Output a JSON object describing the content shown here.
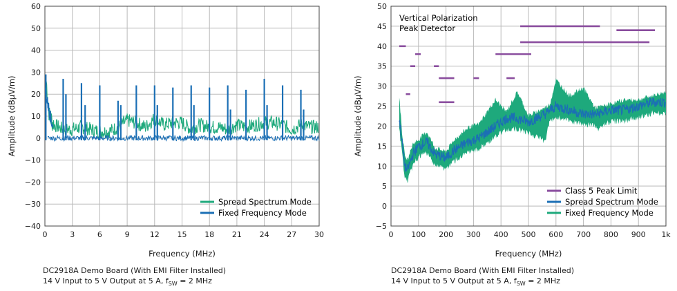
{
  "colors": {
    "spread_left": "#1ea97c",
    "fixed_left": "#1b6fb5",
    "spread_right": "#1b6fb5",
    "fixed_right": "#1ea97c",
    "limit": "#8a4d9e",
    "grid": "#b9b9b9"
  },
  "chart_data": [
    {
      "type": "line",
      "xlabel": "Frequency (MHz)",
      "ylabel": "Amplitude (dBµV/m)",
      "xlim": [
        0,
        30
      ],
      "ylim": [
        -40,
        60
      ],
      "grid": true,
      "legend_position": "bottom-right",
      "x_ticks": [
        "0",
        "3",
        "6",
        "9",
        "12",
        "15",
        "18",
        "21",
        "24",
        "27",
        "30"
      ],
      "y_ticks": [
        "60",
        "50",
        "40",
        "30",
        "20",
        "10",
        "0",
        "−10",
        "−20",
        "−30",
        "−40"
      ],
      "legend": [
        "Spread Spectrum Mode",
        "Fixed Frequency Mode"
      ],
      "series": [
        {
          "name": "Spread Spectrum Mode",
          "x": [
            0.15,
            0.5,
            1,
            2,
            3,
            4,
            5,
            6,
            7,
            8,
            9,
            10,
            11,
            12,
            13,
            14,
            15,
            16,
            17,
            18,
            19,
            20,
            21,
            22,
            23,
            24,
            25,
            26,
            27,
            28,
            29,
            30
          ],
          "values": [
            26,
            10,
            6,
            4,
            4,
            5,
            4,
            3,
            3,
            5,
            8,
            7,
            5,
            9,
            6,
            7,
            7,
            4,
            6,
            5,
            5,
            4,
            6,
            5,
            6,
            7,
            7,
            6,
            4,
            6,
            5,
            5
          ]
        },
        {
          "name": "Fixed Frequency Mode",
          "peaks_x": [
            0.1,
            2,
            2.3,
            4,
            4.4,
            6,
            8,
            8.3,
            10,
            12,
            12.3,
            14,
            16,
            16.3,
            18,
            20,
            20.3,
            22,
            24,
            24.3,
            26,
            28,
            28.3
          ],
          "peaks_y": [
            29,
            27,
            20,
            25,
            15,
            24,
            17,
            15,
            24,
            24,
            15,
            23,
            24,
            15,
            23,
            24,
            13,
            22,
            27,
            15,
            24,
            22,
            13
          ],
          "baseline": 0
        }
      ],
      "caption": [
        "DC2918A Demo Board (With EMI Filter Installed)",
        "14 V Input to 5 V Output at 5 A, f",
        "SW",
        " = 2 MHz"
      ]
    },
    {
      "type": "line",
      "xlabel": "Frequency (MHz)",
      "ylabel": "Amplitude (dBµV/m)",
      "xlim": [
        0,
        1000
      ],
      "ylim": [
        -5,
        50
      ],
      "grid": true,
      "legend_position": "bottom-right",
      "annotation": [
        "Vertical Polarization",
        "Peak Detector"
      ],
      "x_ticks": [
        "0",
        "100",
        "200",
        "300",
        "400",
        "500",
        "600",
        "700",
        "800",
        "900",
        "1k"
      ],
      "y_ticks": [
        "50",
        "45",
        "40",
        "35",
        "30",
        "25",
        "20",
        "15",
        "10",
        "5",
        "0",
        "−5"
      ],
      "legend": [
        "Class 5 Peak Limit",
        "Spread Spectrum Mode",
        "Fixed Frequency Mode"
      ],
      "limit_segments": [
        [
          30,
          54,
          40
        ],
        [
          54,
          70,
          28
        ],
        [
          70,
          88,
          35
        ],
        [
          88,
          108,
          38
        ],
        [
          156,
          174,
          35
        ],
        [
          174,
          230,
          26
        ],
        [
          174,
          230,
          32
        ],
        [
          300,
          320,
          32
        ],
        [
          380,
          510,
          38
        ],
        [
          420,
          450,
          32
        ],
        [
          470,
          760,
          45
        ],
        [
          470,
          940,
          41
        ],
        [
          820,
          960,
          44
        ]
      ],
      "series": [
        {
          "name": "Spread Spectrum Mode",
          "x": [
            30,
            40,
            50,
            60,
            70,
            80,
            100,
            130,
            160,
            200,
            230,
            280,
            320,
            380,
            420,
            460,
            500,
            560,
            600,
            650,
            700,
            750,
            800,
            850,
            900,
            950,
            1000
          ],
          "values": [
            22,
            16,
            10,
            9,
            11,
            13,
            15,
            16,
            13,
            12,
            14,
            16,
            17,
            20,
            22,
            22,
            21,
            23,
            25,
            24,
            23,
            23,
            24,
            24,
            25,
            26,
            26
          ]
        },
        {
          "name": "Fixed Frequency Mode",
          "x": [
            30,
            40,
            50,
            60,
            70,
            80,
            100,
            130,
            160,
            200,
            230,
            280,
            320,
            380,
            420,
            460,
            500,
            560,
            600,
            650,
            700,
            750,
            800,
            850,
            900,
            950,
            1000
          ],
          "values": [
            26,
            17,
            11,
            10,
            12,
            14,
            15,
            17,
            13,
            12,
            15,
            18,
            19,
            25,
            22,
            27,
            21,
            19,
            30,
            26,
            28,
            22,
            24,
            25,
            25,
            26,
            27
          ]
        }
      ],
      "caption": [
        "DC2918A Demo Board (With EMI Filter Installed)",
        "14 V Input to 5 V Output at 5 A, f",
        "SW",
        " = 2 MHz"
      ]
    }
  ]
}
